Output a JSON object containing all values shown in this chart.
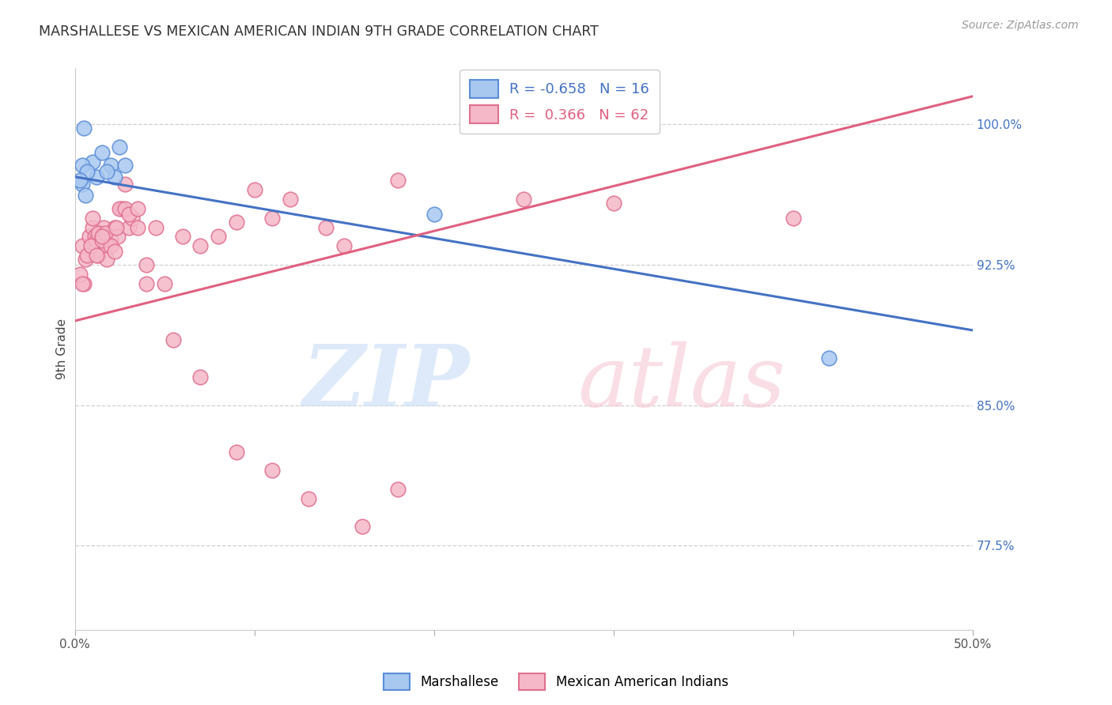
{
  "title": "MARSHALLESE VS MEXICAN AMERICAN INDIAN 9TH GRADE CORRELATION CHART",
  "source": "Source: ZipAtlas.com",
  "ylabel": "9th Grade",
  "blue_R": -0.658,
  "blue_N": 16,
  "pink_R": 0.366,
  "pink_N": 62,
  "xlim": [
    0.0,
    50.0
  ],
  "ylim": [
    73.0,
    103.0
  ],
  "yticks": [
    77.5,
    85.0,
    92.5,
    100.0
  ],
  "ytick_labels": [
    "77.5%",
    "85.0%",
    "92.5%",
    "100.0%"
  ],
  "blue_scatter_color": "#a8c8f0",
  "blue_scatter_edge": "#5b8dd9",
  "pink_scatter_color": "#f5b8c8",
  "pink_scatter_edge": "#e07090",
  "blue_line_color": "#4472c4",
  "pink_line_color": "#e06080",
  "background_color": "#ffffff",
  "grid_color": "#d0d0d0",
  "legend_label_blue": "Marshallese",
  "legend_label_pink": "Mexican American Indians",
  "blue_line_x0": 0.0,
  "blue_line_y0": 97.2,
  "blue_line_x1": 50.0,
  "blue_line_y1": 89.0,
  "pink_line_x0": 0.0,
  "pink_line_y0": 89.5,
  "pink_line_x1": 50.0,
  "pink_line_y1": 101.5,
  "blue_points_x": [
    0.5,
    1.0,
    1.2,
    0.4,
    0.4,
    0.6,
    0.7,
    1.5,
    2.0,
    2.5,
    2.2,
    2.8,
    1.8,
    0.3,
    20.0,
    42.0
  ],
  "blue_points_y": [
    99.8,
    98.0,
    97.2,
    97.8,
    96.8,
    96.2,
    97.5,
    98.5,
    97.8,
    98.8,
    97.2,
    97.8,
    97.5,
    97.0,
    95.2,
    87.5
  ],
  "pink_points_x": [
    0.4,
    0.6,
    0.8,
    1.0,
    1.1,
    1.2,
    1.3,
    1.4,
    1.5,
    1.6,
    1.8,
    2.0,
    2.2,
    2.4,
    2.6,
    2.8,
    3.0,
    3.2,
    3.5,
    4.0,
    4.5,
    5.0,
    6.0,
    7.0,
    8.0,
    9.0,
    10.0,
    11.0,
    12.0,
    14.0,
    15.0,
    18.0,
    0.5,
    0.7,
    0.9,
    1.0,
    1.3,
    1.5,
    1.7,
    2.0,
    2.3,
    2.5,
    2.8,
    3.0,
    3.5,
    4.0,
    5.5,
    7.0,
    9.0,
    11.0,
    13.0,
    16.0,
    18.0,
    0.3,
    1.8,
    25.0,
    30.0,
    40.0,
    0.4,
    1.2,
    1.5,
    2.2
  ],
  "pink_points_y": [
    93.5,
    92.8,
    94.0,
    94.5,
    94.0,
    93.8,
    93.0,
    94.2,
    94.0,
    94.5,
    93.5,
    93.8,
    94.5,
    94.0,
    95.5,
    96.8,
    94.5,
    95.0,
    94.5,
    91.5,
    94.5,
    91.5,
    94.0,
    93.5,
    94.0,
    94.8,
    96.5,
    95.0,
    96.0,
    94.5,
    93.5,
    97.0,
    91.5,
    93.0,
    93.5,
    95.0,
    94.2,
    93.8,
    94.2,
    93.5,
    94.5,
    95.5,
    95.5,
    95.2,
    95.5,
    92.5,
    88.5,
    86.5,
    82.5,
    81.5,
    80.0,
    78.5,
    80.5,
    92.0,
    92.8,
    96.0,
    95.8,
    95.0,
    91.5,
    93.0,
    94.0,
    93.2
  ]
}
